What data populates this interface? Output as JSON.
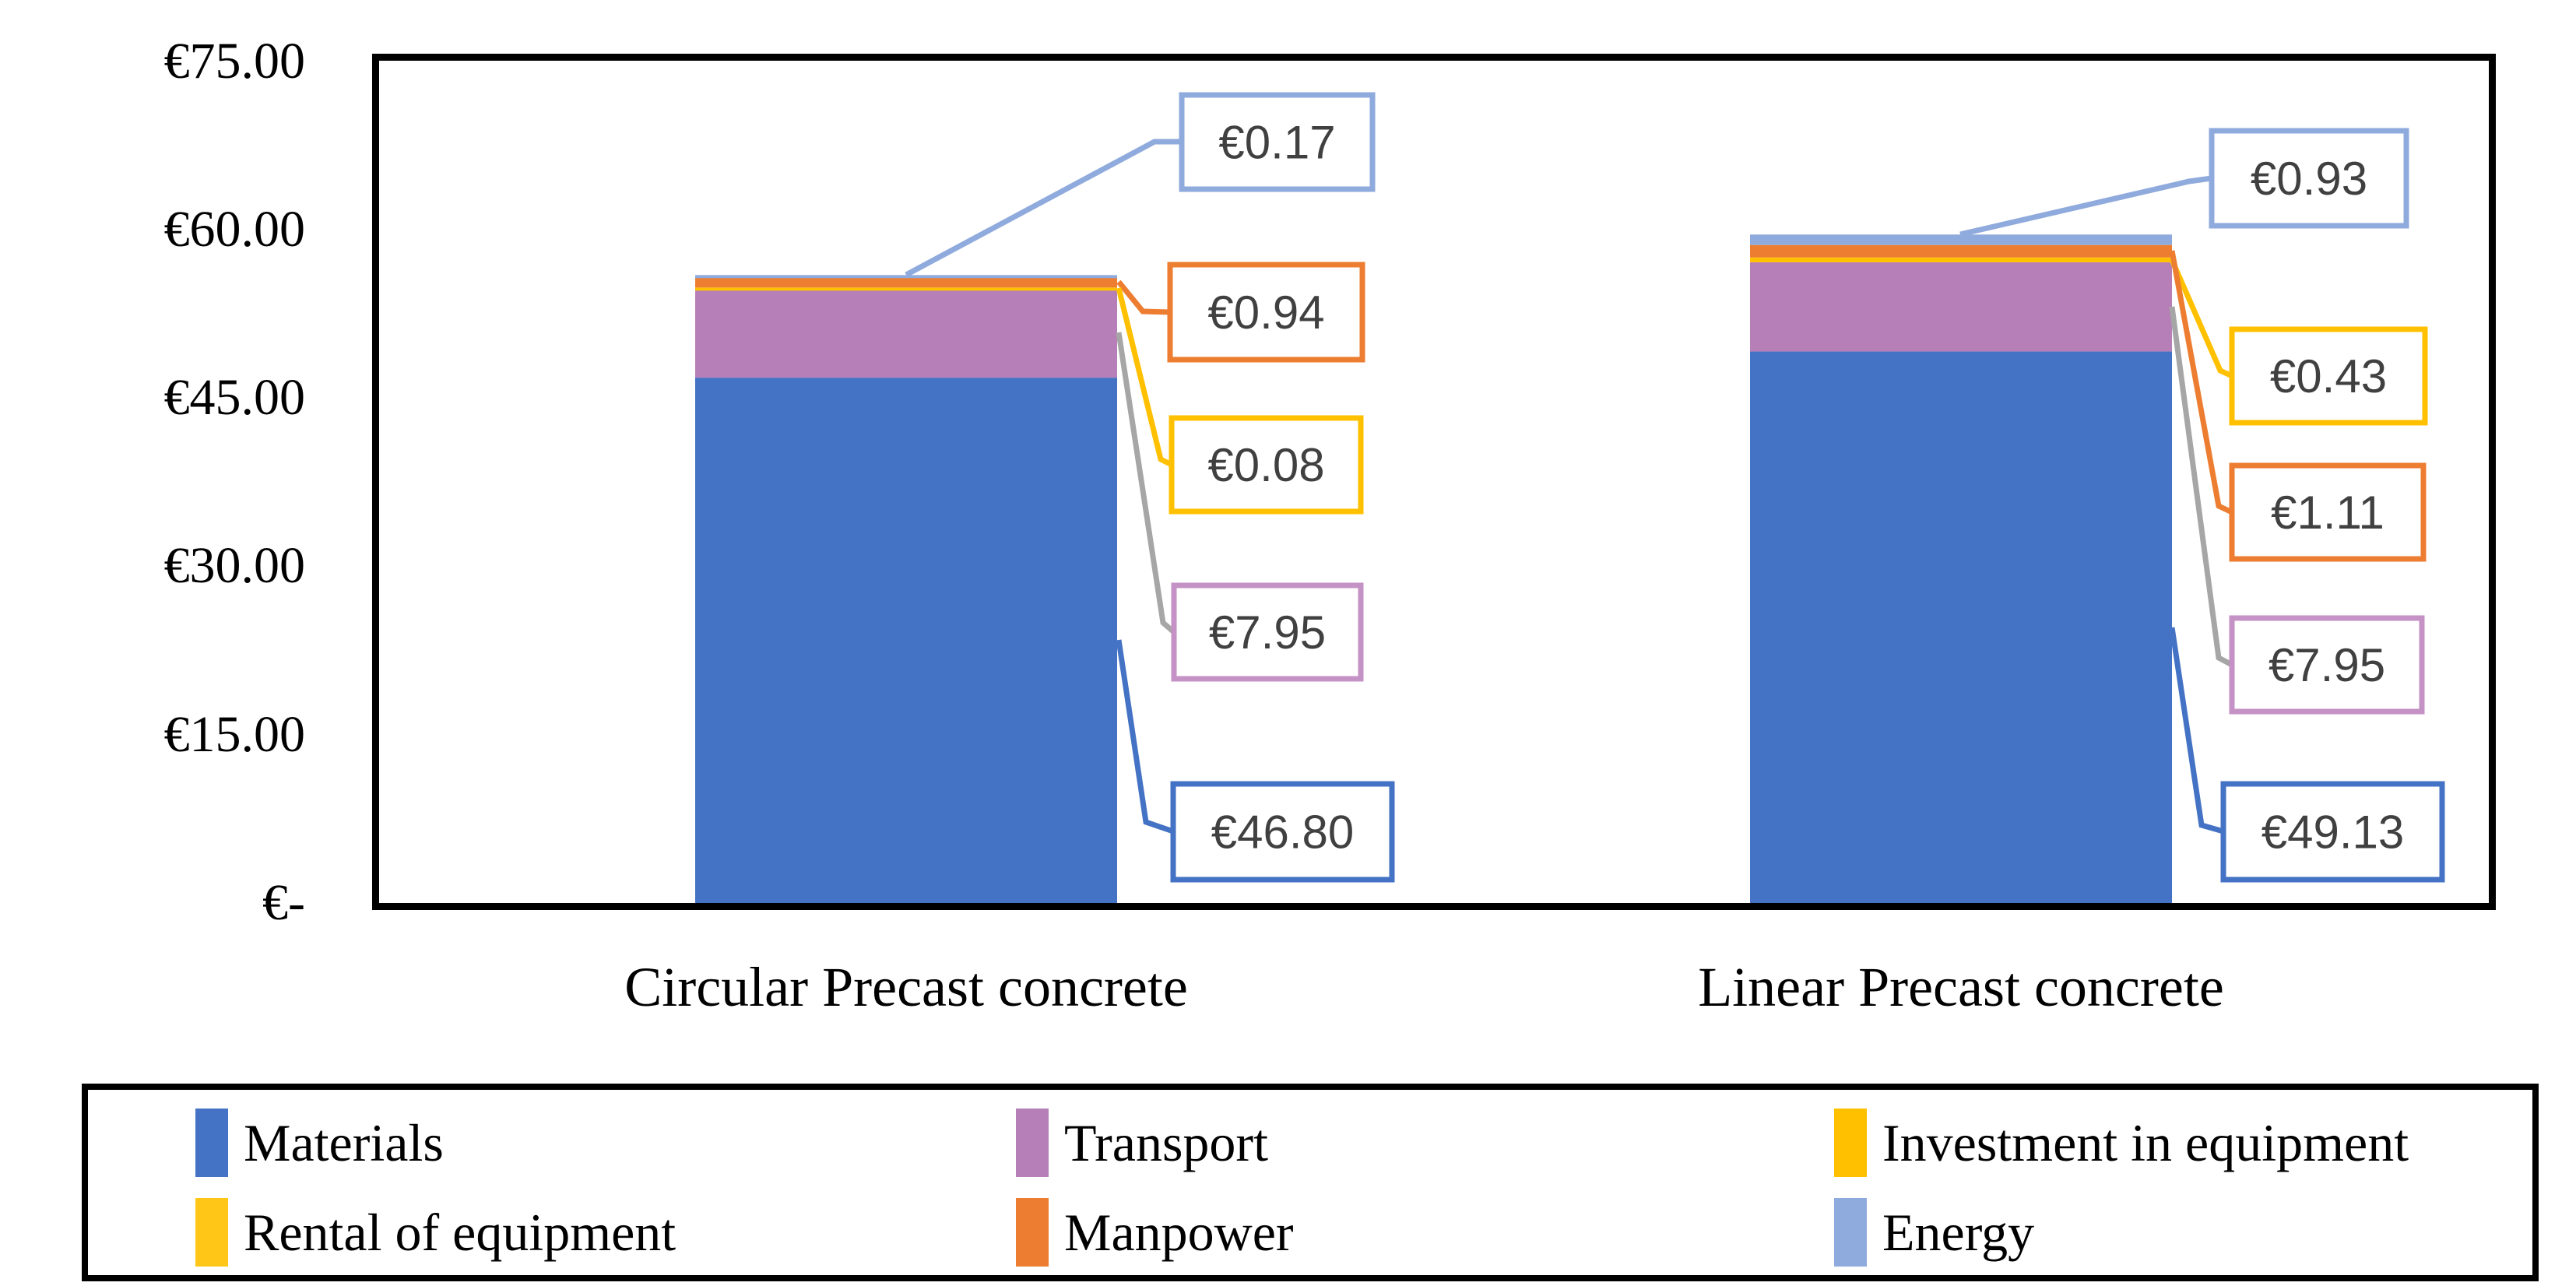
{
  "chart_data": {
    "type": "bar",
    "subtype": "stacked-column",
    "title": "",
    "xlabel": "",
    "ylabel": "",
    "ylim": [
      0,
      75
    ],
    "grid": false,
    "legend_position": "bottom",
    "categories": [
      "Circular Precast concrete",
      "Linear Precast concrete"
    ],
    "series": [
      {
        "name": "Materials",
        "color": "#4472C4",
        "values": [
          46.8,
          49.13
        ]
      },
      {
        "name": "Transport",
        "color": "#B77FB7",
        "values": [
          7.95,
          7.95
        ]
      },
      {
        "name": "Investment in equipment",
        "color": "#FFC000",
        "values": [
          0.08,
          0.43
        ]
      },
      {
        "name": "Rental of equipment",
        "color": "#FFC617",
        "values": [
          0,
          0
        ]
      },
      {
        "name": "Manpower",
        "color": "#ED7D31",
        "values": [
          0.94,
          1.11
        ]
      },
      {
        "name": "Energy",
        "color": "#8FAADC",
        "values": [
          0.17,
          0.93
        ]
      }
    ],
    "y_ticks": [
      {
        "value": 0,
        "label": "€-"
      },
      {
        "value": 15,
        "label": "€15.00"
      },
      {
        "value": 30,
        "label": "€30.00"
      },
      {
        "value": 45,
        "label": "€45.00"
      },
      {
        "value": 60,
        "label": "€60.00"
      },
      {
        "value": 75,
        "label": "€75.00"
      }
    ],
    "legend_rows": [
      [
        "Materials",
        "Transport",
        "Investment in equipment"
      ],
      [
        "Rental of equipment",
        "Manpower",
        "Energy"
      ]
    ],
    "data_labels": [
      {
        "category": "Circular Precast concrete",
        "callouts": [
          {
            "series": "Energy",
            "label": "€0.17"
          },
          {
            "series": "Manpower",
            "label": "€0.94"
          },
          {
            "series": "Investment in equipment",
            "label": "€0.08"
          },
          {
            "series": "Transport",
            "label": "€7.95"
          },
          {
            "series": "Materials",
            "label": "€46.80"
          }
        ]
      },
      {
        "category": "Linear Precast concrete",
        "callouts": [
          {
            "series": "Energy",
            "label": "€0.93"
          },
          {
            "series": "Investment in equipment",
            "label": "€0.43"
          },
          {
            "series": "Manpower",
            "label": "€1.11"
          },
          {
            "series": "Transport",
            "label": "€7.95"
          },
          {
            "series": "Materials",
            "label": "€49.13"
          }
        ]
      }
    ],
    "colors": {
      "plot_border": "#000000",
      "legend_border": "#000000",
      "callout_text": "#404040",
      "transport_leader_gray": "#A6A6A6",
      "transport_box_border": "#C492C4",
      "axis_text": "#000000"
    }
  }
}
